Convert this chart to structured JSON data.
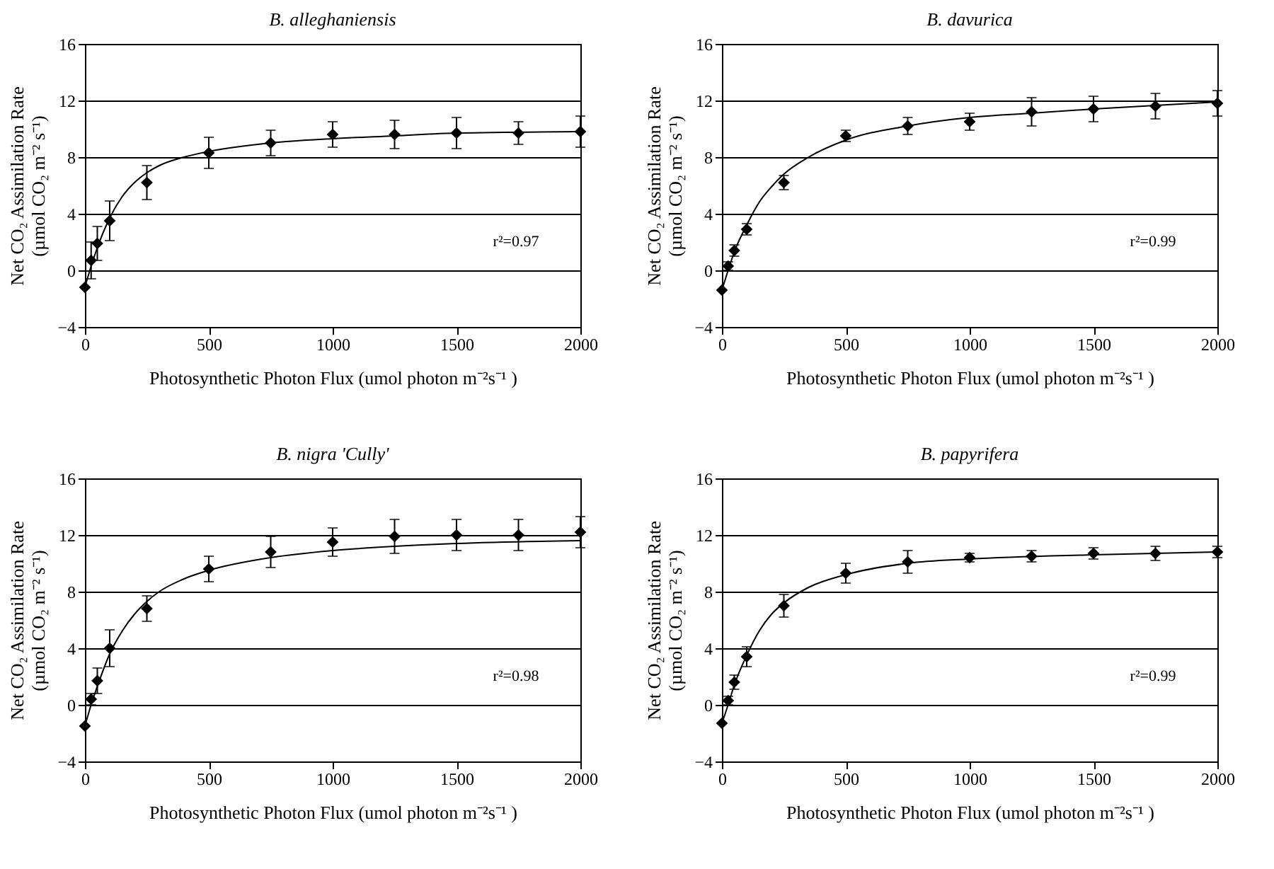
{
  "chart_data": [
    {
      "type": "scatter",
      "title": "B. alleghaniensis",
      "xlabel": "Photosynthetic Photon Flux (umol photon m⁻²s⁻¹ )",
      "ylabel": "Net CO₂ Assimilation Rate\n(µmol CO₂ m⁻² s⁻¹)",
      "xlim": [
        0,
        2000
      ],
      "ylim": [
        -4,
        16
      ],
      "xticks": [
        0,
        500,
        1000,
        1500,
        2000
      ],
      "yticks": [
        -4,
        0,
        4,
        8,
        12,
        16
      ],
      "grid": "y",
      "marker": "diamond",
      "annotations": [
        "r²=0.97"
      ],
      "series": [
        {
          "type": "scatter",
          "color": "#000000",
          "x": [
            0,
            25,
            50,
            100,
            250,
            500,
            750,
            1000,
            1250,
            1500,
            1750,
            2000
          ],
          "values": [
            -1.2,
            0.7,
            1.9,
            3.5,
            6.2,
            8.3,
            9.0,
            9.6,
            9.6,
            9.7,
            9.7,
            9.8
          ],
          "errors": [
            null,
            1.3,
            1.2,
            1.4,
            1.2,
            1.1,
            0.9,
            0.9,
            1.0,
            1.1,
            0.8,
            1.1
          ]
        },
        {
          "type": "line",
          "color": "#000000",
          "marker": "none",
          "x": [
            0,
            25,
            50,
            100,
            150,
            200,
            250,
            300,
            400,
            500,
            750,
            1000,
            1250,
            1500,
            2000
          ],
          "values": [
            -1.2,
            0.3,
            1.6,
            3.7,
            5.2,
            6.2,
            6.9,
            7.4,
            8.0,
            8.4,
            9.0,
            9.3,
            9.5,
            9.7,
            9.8
          ]
        }
      ]
    },
    {
      "type": "scatter",
      "title": "B. davurica",
      "xlabel": "Photosynthetic Photon Flux (umol photon m⁻²s⁻¹ )",
      "ylabel": "Net CO₂ Assimilation Rate\n(µmol CO₂ m⁻² s⁻¹)",
      "xlim": [
        0,
        2000
      ],
      "ylim": [
        -4,
        16
      ],
      "xticks": [
        0,
        500,
        1000,
        1500,
        2000
      ],
      "yticks": [
        -4,
        0,
        4,
        8,
        12,
        16
      ],
      "grid": "y",
      "marker": "diamond",
      "annotations": [
        "r²=0.99"
      ],
      "series": [
        {
          "type": "scatter",
          "color": "#000000",
          "x": [
            0,
            25,
            50,
            100,
            250,
            500,
            750,
            1000,
            1250,
            1500,
            1750,
            2000
          ],
          "values": [
            -1.4,
            0.3,
            1.4,
            2.9,
            6.2,
            9.5,
            10.2,
            10.5,
            11.2,
            11.4,
            11.6,
            11.8
          ],
          "errors": [
            null,
            0.3,
            0.4,
            0.4,
            0.5,
            0.4,
            0.6,
            0.6,
            1.0,
            0.9,
            0.9,
            0.9
          ]
        },
        {
          "type": "line",
          "color": "#000000",
          "marker": "none",
          "x": [
            0,
            25,
            50,
            100,
            150,
            200,
            250,
            350,
            500,
            750,
            1000,
            1250,
            1500,
            2000
          ],
          "values": [
            -1.4,
            0.0,
            1.3,
            3.2,
            4.8,
            5.9,
            6.8,
            8.0,
            9.2,
            10.2,
            10.8,
            11.1,
            11.4,
            11.9
          ]
        }
      ]
    },
    {
      "type": "scatter",
      "title": "B. nigra  'Cully'",
      "xlabel": "Photosynthetic Photon Flux (umol photon m⁻²s⁻¹ )",
      "ylabel": "Net CO₂ Assimilation Rate\n(µmol CO₂ m⁻² s⁻¹)",
      "xlim": [
        0,
        2000
      ],
      "ylim": [
        -4,
        16
      ],
      "xticks": [
        0,
        500,
        1000,
        1500,
        2000
      ],
      "yticks": [
        -4,
        0,
        4,
        8,
        12,
        16
      ],
      "grid": "y",
      "marker": "diamond",
      "annotations": [
        "r²=0.98"
      ],
      "series": [
        {
          "type": "scatter",
          "color": "#000000",
          "x": [
            0,
            25,
            50,
            100,
            250,
            500,
            750,
            1000,
            1250,
            1500,
            1750,
            2000
          ],
          "values": [
            -1.5,
            0.4,
            1.7,
            4.0,
            6.8,
            9.6,
            10.8,
            11.5,
            11.9,
            12.0,
            12.0,
            12.2
          ],
          "errors": [
            null,
            0.4,
            0.9,
            1.3,
            0.9,
            0.9,
            1.1,
            1.0,
            1.2,
            1.1,
            1.1,
            1.1
          ]
        },
        {
          "type": "line",
          "color": "#000000",
          "marker": "none",
          "x": [
            0,
            25,
            50,
            100,
            150,
            200,
            250,
            300,
            400,
            500,
            750,
            1000,
            1250,
            1500,
            2000
          ],
          "values": [
            -1.5,
            0.0,
            1.3,
            3.6,
            5.2,
            6.4,
            7.3,
            8.0,
            8.9,
            9.5,
            10.4,
            10.9,
            11.2,
            11.4,
            11.6
          ]
        }
      ]
    },
    {
      "type": "scatter",
      "title": "B. papyrifera",
      "xlabel": "Photosynthetic Photon Flux (umol photon m⁻²s⁻¹ )",
      "ylabel": "Net CO₂ Assimilation Rate\n(µmol CO₂ m⁻² s⁻¹)",
      "xlim": [
        0,
        2000
      ],
      "ylim": [
        -4,
        16
      ],
      "xticks": [
        0,
        500,
        1000,
        1500,
        2000
      ],
      "yticks": [
        -4,
        0,
        4,
        8,
        12,
        16
      ],
      "grid": "y",
      "marker": "diamond",
      "annotations": [
        "r²=0.99"
      ],
      "series": [
        {
          "type": "scatter",
          "color": "#000000",
          "x": [
            0,
            25,
            50,
            100,
            250,
            500,
            750,
            1000,
            1250,
            1500,
            1750,
            2000
          ],
          "values": [
            -1.3,
            0.3,
            1.6,
            3.4,
            7.0,
            9.3,
            10.1,
            10.4,
            10.5,
            10.7,
            10.7,
            10.8
          ],
          "errors": [
            null,
            0.3,
            0.5,
            0.7,
            0.8,
            0.7,
            0.8,
            0.3,
            0.4,
            0.4,
            0.5,
            0.4
          ]
        },
        {
          "type": "line",
          "color": "#000000",
          "marker": "none",
          "x": [
            0,
            25,
            50,
            100,
            150,
            200,
            250,
            350,
            500,
            750,
            1000,
            1500,
            2000
          ],
          "values": [
            -1.3,
            0.0,
            1.4,
            3.5,
            5.2,
            6.4,
            7.2,
            8.3,
            9.2,
            10.0,
            10.3,
            10.6,
            10.8
          ]
        }
      ]
    }
  ]
}
